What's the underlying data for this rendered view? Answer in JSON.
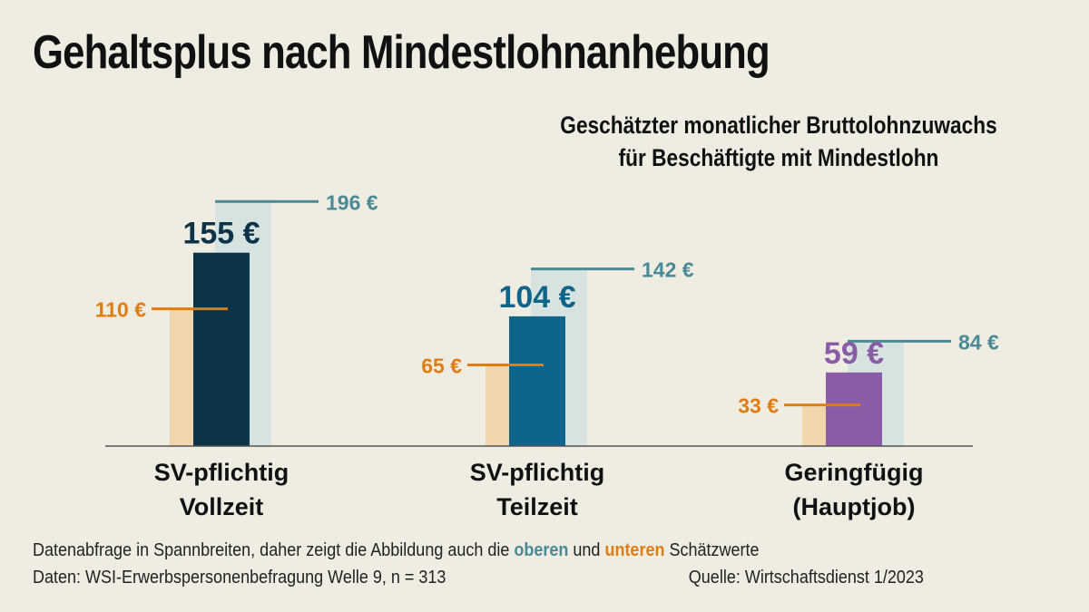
{
  "title": "Gehaltsplus nach Mindestlohnanhebung",
  "subtitle_line1": "Geschätzter monatlicher Bruttolohnzuwachs",
  "subtitle_line2": "für Beschäftigte mit Mindestlohn",
  "footer": {
    "note_prefix": "Datenabfrage in Spannbreiten, daher zeigt die Abbildung auch die ",
    "note_upper": "oberen",
    "note_mid": " und ",
    "note_lower": "unteren",
    "note_suffix": " Schätzwerte",
    "data_source": "Daten: WSI-Erwerbspersonenbefragung Welle 9, n = 313",
    "source": "Quelle: Wirtschaftsdienst 1/2023"
  },
  "colors": {
    "background": "#efece1",
    "upper": "#4a8a96",
    "upper_band": "#d6e3e1",
    "lower": "#e07d12",
    "lower_band": "#f0d5ad",
    "axis": "#555555"
  },
  "chart_data": {
    "type": "bar",
    "unit": "€",
    "categories": [
      {
        "line1": "SV-pflichtig",
        "line2": "Vollzeit"
      },
      {
        "line1": "SV-pflichtig",
        "line2": "Teilzeit"
      },
      {
        "line1": "Geringfügig",
        "line2": "(Hauptjob)"
      }
    ],
    "series": [
      {
        "values": [
          155,
          104,
          59
        ],
        "labels": [
          "155 €",
          "104 €",
          "59 €"
        ],
        "colors": [
          "#0d3349",
          "#0e6489",
          "#8b5ca6"
        ]
      },
      {
        "name": "oberen",
        "values": [
          196,
          142,
          84
        ],
        "labels": [
          "196 €",
          "142 €",
          "84 €"
        ]
      },
      {
        "name": "unteren",
        "values": [
          110,
          65,
          33
        ],
        "labels": [
          "110 €",
          "65 €",
          "33 €"
        ]
      }
    ],
    "ylim": [
      0,
      200
    ]
  }
}
